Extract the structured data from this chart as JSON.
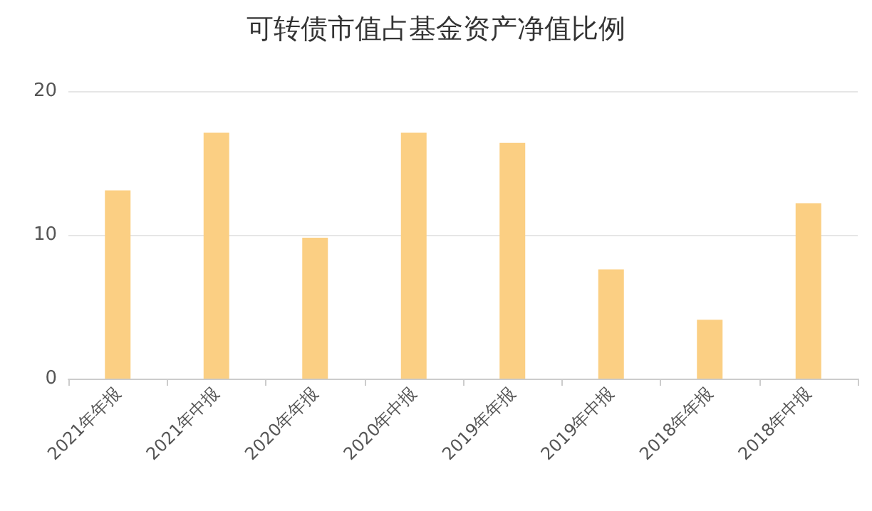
{
  "chart_data": {
    "type": "bar",
    "title": "可转债市值占基金资产净值比例",
    "categories": [
      "2021年年报",
      "2021年中报",
      "2020年年报",
      "2020年中报",
      "2019年年报",
      "2019年中报",
      "2018年年报",
      "2018年中报"
    ],
    "values": [
      13.1,
      17.1,
      9.8,
      17.1,
      16.4,
      7.6,
      4.1,
      12.2
    ],
    "color": "#fbcf83",
    "ylim": [
      0,
      20
    ],
    "yticks": [
      0,
      10,
      20
    ],
    "grid": "y"
  }
}
